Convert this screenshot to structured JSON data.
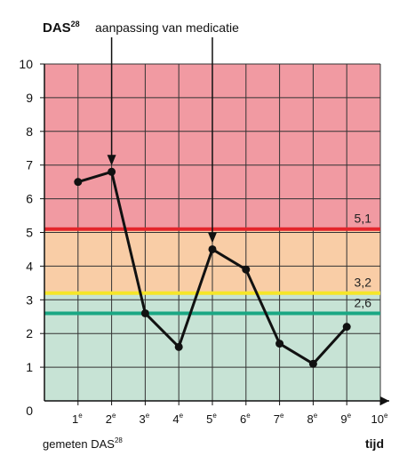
{
  "chart_data": {
    "type": "line",
    "ylabel_main": "DAS",
    "ylabel_sup": "28",
    "annotation": "aanpassing van medicatie",
    "annotation_points": [
      2,
      5
    ],
    "xlabel": "tijd",
    "bottom_label_main": "gemeten DAS",
    "bottom_label_sup": "28",
    "origin_label": "0",
    "x_ticks": [
      {
        "value": 1,
        "num": "1",
        "sup": "e"
      },
      {
        "value": 2,
        "num": "2",
        "sup": "e"
      },
      {
        "value": 3,
        "num": "3",
        "sup": "e"
      },
      {
        "value": 4,
        "num": "4",
        "sup": "e"
      },
      {
        "value": 5,
        "num": "5",
        "sup": "e"
      },
      {
        "value": 6,
        "num": "6",
        "sup": "e"
      },
      {
        "value": 7,
        "num": "7",
        "sup": "e"
      },
      {
        "value": 8,
        "num": "8",
        "sup": "e"
      },
      {
        "value": 9,
        "num": "9",
        "sup": "e"
      },
      {
        "value": 10,
        "num": "10",
        "sup": "e"
      }
    ],
    "y_ticks": [
      "1",
      "2",
      "3",
      "4",
      "5",
      "6",
      "7",
      "8",
      "9",
      "10"
    ],
    "xlim": [
      0,
      10
    ],
    "ylim": [
      0,
      10
    ],
    "grid": true,
    "bands": [
      {
        "from": 0,
        "to": 2.6,
        "color": "#c7e3d5"
      },
      {
        "from": 2.6,
        "to": 3.2,
        "color": "#c7e3d5"
      },
      {
        "from": 3.2,
        "to": 5.1,
        "color": "#f9cda6"
      },
      {
        "from": 5.1,
        "to": 10,
        "color": "#f19aa2"
      }
    ],
    "thresholds": [
      {
        "value": 5.1,
        "label": "5,1",
        "color": "#e4252b"
      },
      {
        "value": 3.2,
        "label": "3,2",
        "color": "#f5e629"
      },
      {
        "value": 2.6,
        "label": "2,6",
        "color": "#1aa784"
      }
    ],
    "series": [
      {
        "x": [
          1,
          2,
          3,
          4,
          5,
          6,
          7,
          8,
          9
        ],
        "y": [
          6.5,
          6.8,
          2.6,
          1.6,
          4.5,
          3.9,
          1.7,
          1.1,
          2.2
        ],
        "color": "#111111"
      }
    ]
  }
}
